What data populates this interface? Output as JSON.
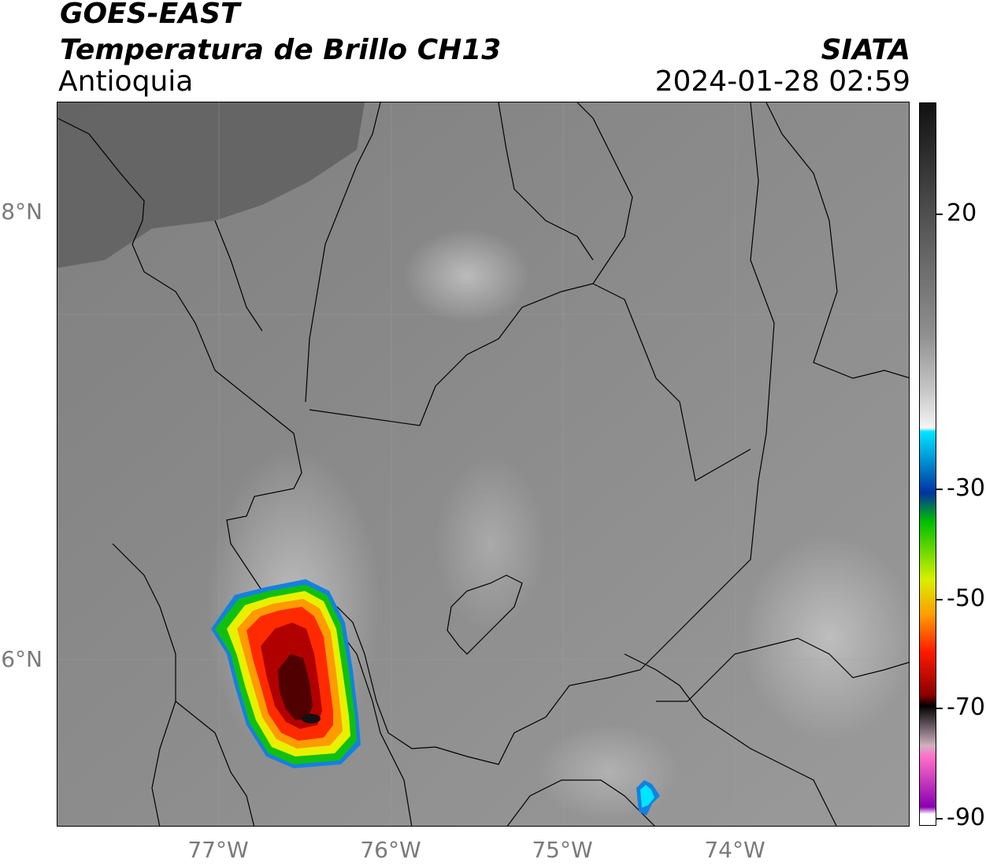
{
  "header": {
    "satellite": "GOES-EAST",
    "product": "Temperatura de Brillo CH13",
    "region": "Antioquia",
    "org": "SIATA",
    "datetime": "2024-01-28 02:59"
  },
  "axes": {
    "lat_labels": [
      "8°N",
      "6°N"
    ],
    "lon_labels": [
      "77°W",
      "76°W",
      "75°W",
      "74°W"
    ]
  },
  "colorbar": {
    "ticks": [
      "20",
      "-30",
      "-50",
      "-70",
      "-90"
    ],
    "colors": [
      "#111111",
      "#5a5a5a",
      "#8f8f8f",
      "#c8c8c8",
      "#f4f4f4",
      "#00e5ff",
      "#0033a0",
      "#00c000",
      "#d8f000",
      "#ff9a00",
      "#ff1a00",
      "#8a0000",
      "#000000",
      "#d0b0c0",
      "#ff70c8",
      "#8a00b0",
      "#ffffff"
    ]
  },
  "colors": {
    "background_gray": "#8a8a8a",
    "storm_core": "#2a0000"
  }
}
